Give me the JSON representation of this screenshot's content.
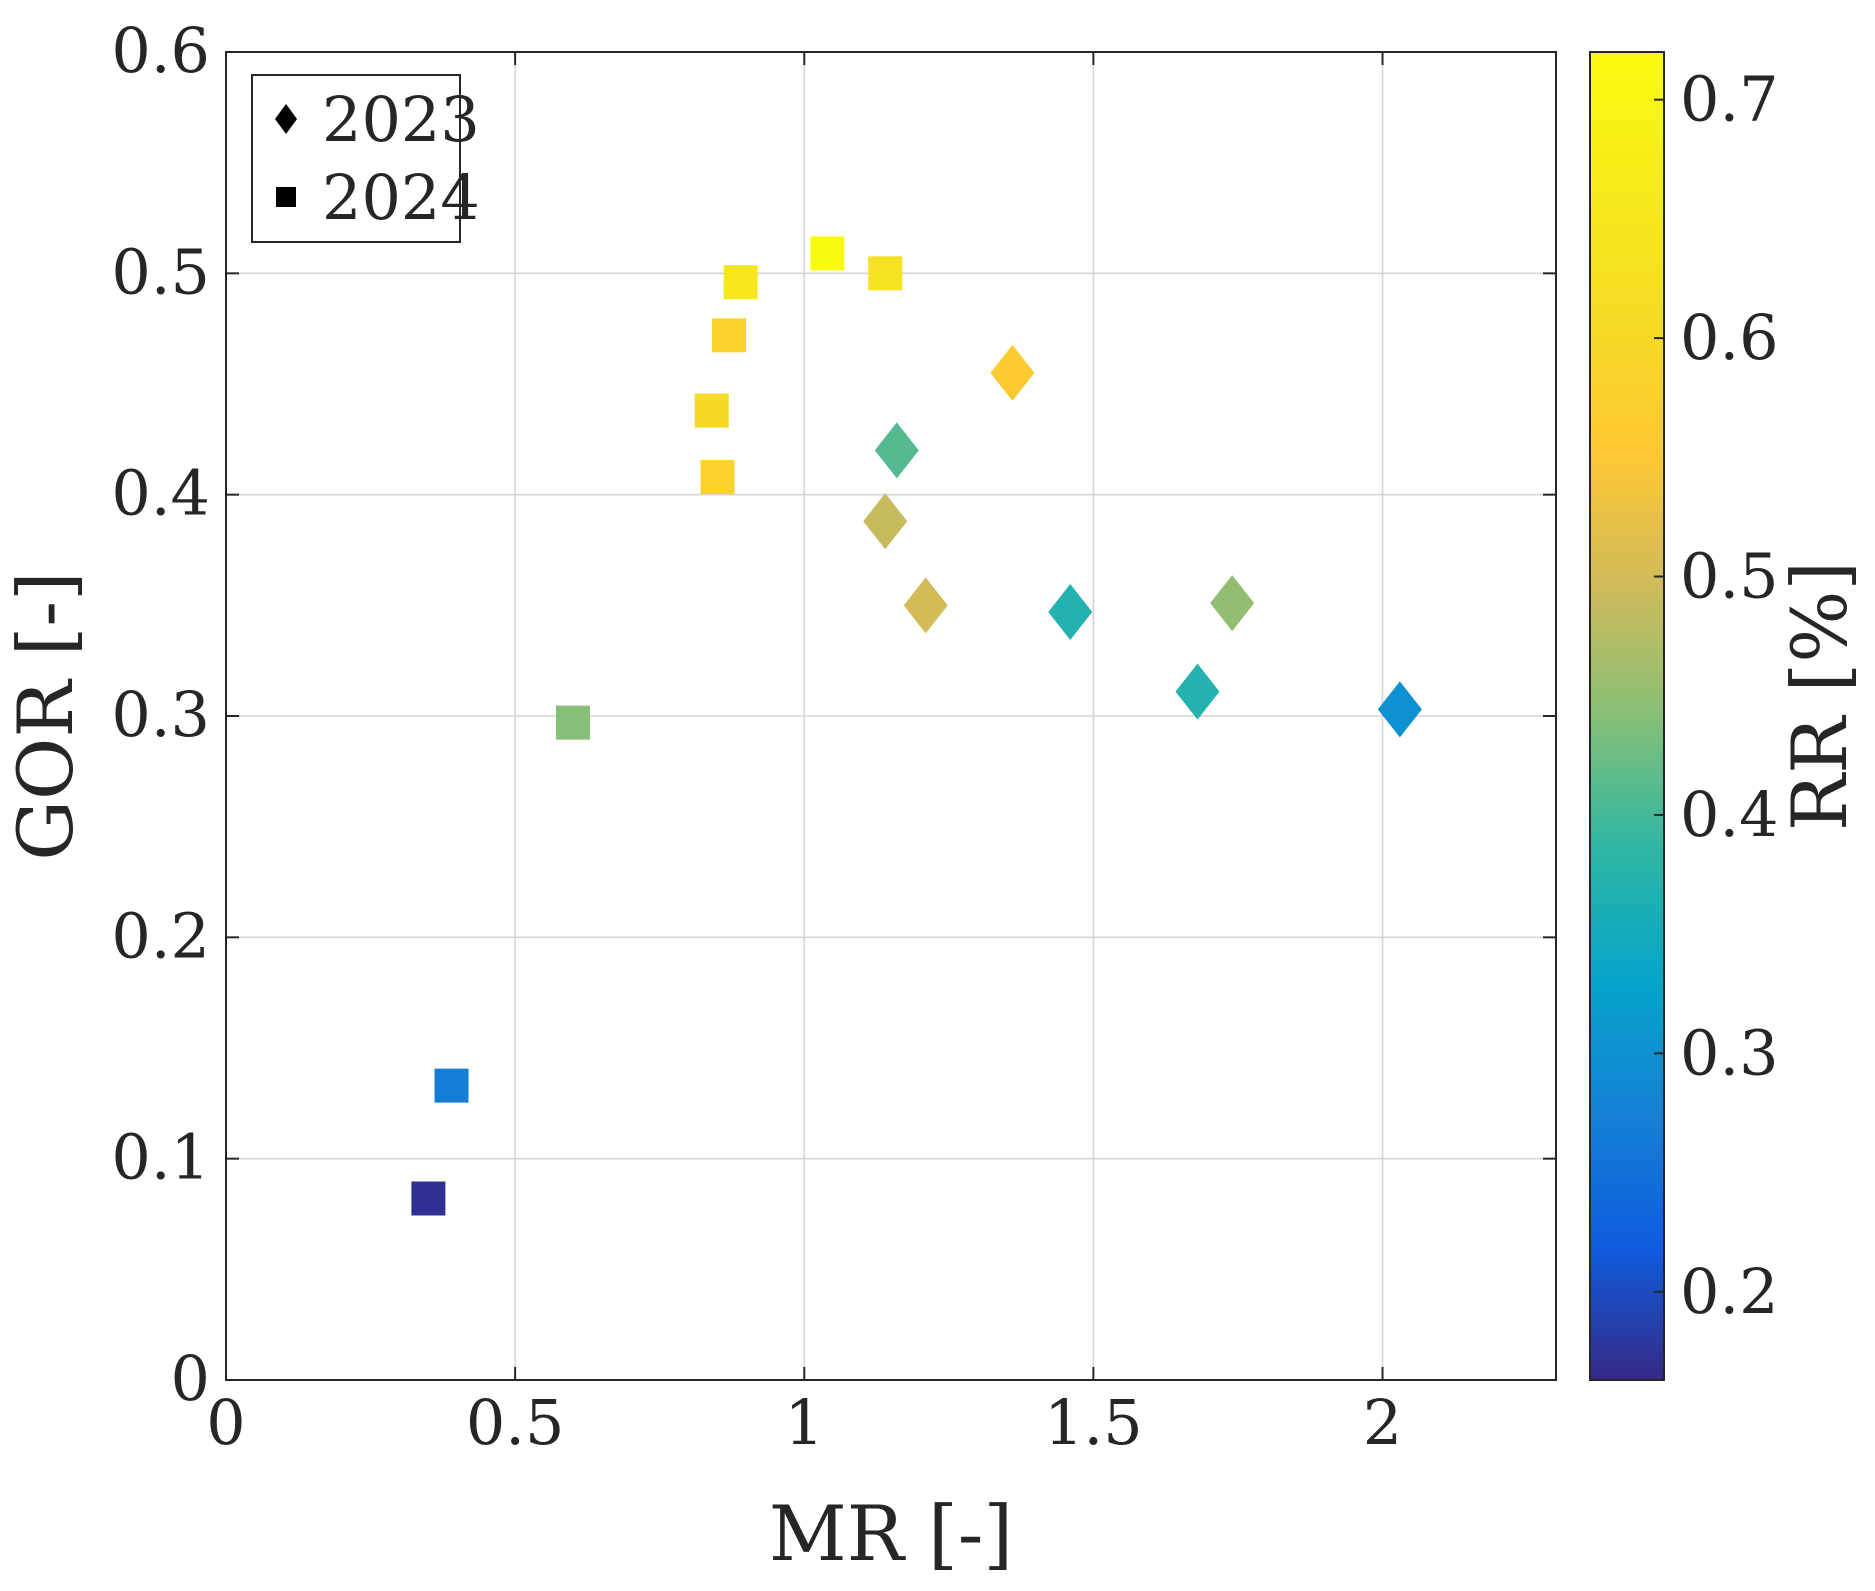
{
  "chart_data": {
    "type": "scatter",
    "xlabel": "MR [-]",
    "ylabel": "GOR [-]",
    "xlim": [
      0,
      2.3
    ],
    "ylim": [
      0,
      0.6
    ],
    "xticks": [
      0,
      0.5,
      1,
      1.5,
      2
    ],
    "xtick_labels": [
      "0",
      "0.5",
      "1",
      "1.5",
      "2"
    ],
    "yticks": [
      0,
      0.1,
      0.2,
      0.3,
      0.4,
      0.5,
      0.6
    ],
    "ytick_labels": [
      "0",
      "0.1",
      "0.2",
      "0.3",
      "0.4",
      "0.5",
      "0.6"
    ],
    "grid": true,
    "legend_position": "top-left",
    "colorbar": {
      "label": "RR [%]",
      "range": [
        0.163,
        0.72
      ],
      "ticks": [
        0.2,
        0.3,
        0.4,
        0.5,
        0.6,
        0.7
      ],
      "tick_labels": [
        "0.2",
        "0.3",
        "0.4",
        "0.5",
        "0.6",
        "0.7"
      ],
      "colormap": "parula",
      "colormap_stops": [
        {
          "t": 0.0,
          "color": "#352a87"
        },
        {
          "t": 0.1,
          "color": "#0f5cdd"
        },
        {
          "t": 0.2,
          "color": "#1481d6"
        },
        {
          "t": 0.3,
          "color": "#06a4ca"
        },
        {
          "t": 0.4,
          "color": "#2eb7a4"
        },
        {
          "t": 0.5,
          "color": "#87bf77"
        },
        {
          "t": 0.6,
          "color": "#d1bb59"
        },
        {
          "t": 0.7,
          "color": "#fec832"
        },
        {
          "t": 0.8,
          "color": "#f5dc24"
        },
        {
          "t": 1.0,
          "color": "#f9fb0e"
        }
      ]
    },
    "series": [
      {
        "name": "2023",
        "marker": "diamond",
        "points": [
          {
            "x": 1.36,
            "y": 0.455,
            "rr": 0.56
          },
          {
            "x": 1.16,
            "y": 0.42,
            "rr": 0.41
          },
          {
            "x": 1.14,
            "y": 0.388,
            "rr": 0.49
          },
          {
            "x": 1.21,
            "y": 0.35,
            "rr": 0.5
          },
          {
            "x": 1.46,
            "y": 0.347,
            "rr": 0.37
          },
          {
            "x": 1.74,
            "y": 0.351,
            "rr": 0.45
          },
          {
            "x": 1.68,
            "y": 0.311,
            "rr": 0.37
          },
          {
            "x": 2.03,
            "y": 0.303,
            "rr": 0.3
          }
        ]
      },
      {
        "name": "2024",
        "marker": "square",
        "points": [
          {
            "x": 1.04,
            "y": 0.509,
            "rr": 0.72
          },
          {
            "x": 1.14,
            "y": 0.5,
            "rr": 0.63
          },
          {
            "x": 0.89,
            "y": 0.496,
            "rr": 0.65
          },
          {
            "x": 0.87,
            "y": 0.472,
            "rr": 0.58
          },
          {
            "x": 0.84,
            "y": 0.438,
            "rr": 0.6
          },
          {
            "x": 0.85,
            "y": 0.408,
            "rr": 0.58
          },
          {
            "x": 0.6,
            "y": 0.297,
            "rr": 0.44
          },
          {
            "x": 0.39,
            "y": 0.133,
            "rr": 0.27
          },
          {
            "x": 0.35,
            "y": 0.082,
            "rr": 0.17
          }
        ]
      }
    ],
    "legend": [
      {
        "label": "2023",
        "marker": "diamond"
      },
      {
        "label": "2024",
        "marker": "square"
      }
    ]
  }
}
